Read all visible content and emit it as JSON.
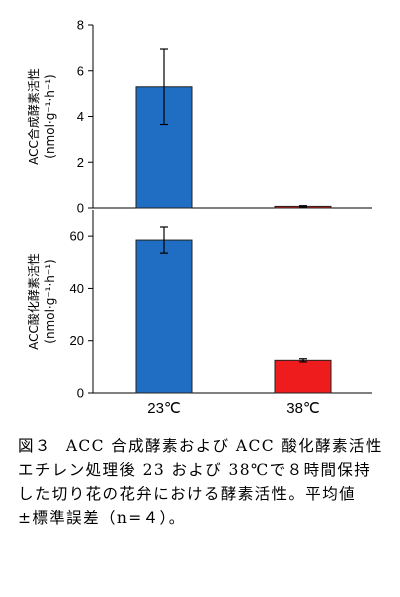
{
  "chart_data": [
    {
      "type": "bar",
      "ylabel": "ACC合成酵素活性",
      "yunit": "(nmol·g⁻¹·h⁻¹)",
      "ylim": [
        0,
        8
      ],
      "yticks": [
        0,
        2,
        4,
        6,
        8
      ],
      "categories": [
        "23℃",
        "38℃"
      ],
      "values": [
        5.3,
        0.07
      ],
      "errors": [
        1.65,
        0.03
      ],
      "colors": [
        "#1f6ec3",
        "#ee1c1c"
      ]
    },
    {
      "type": "bar",
      "ylabel": "ACC酸化酵素活性",
      "yunit": "(nmol·g⁻¹·h⁻¹)",
      "ylim": [
        0,
        70
      ],
      "yticks": [
        0,
        20,
        40,
        60
      ],
      "categories": [
        "23℃",
        "38℃"
      ],
      "values": [
        58.5,
        12.5
      ],
      "errors": [
        5.0,
        0.6
      ],
      "colors": [
        "#1f6ec3",
        "#ee1c1c"
      ]
    }
  ],
  "caption": {
    "label": "図３",
    "title": "ACC 合成酵素および ACC 酸化酵素活性",
    "body": "エチレン処理後 23 および 38℃で８時間保持した切り花の花弁における酵素活性。平均値±標準誤差（n=４）。"
  }
}
